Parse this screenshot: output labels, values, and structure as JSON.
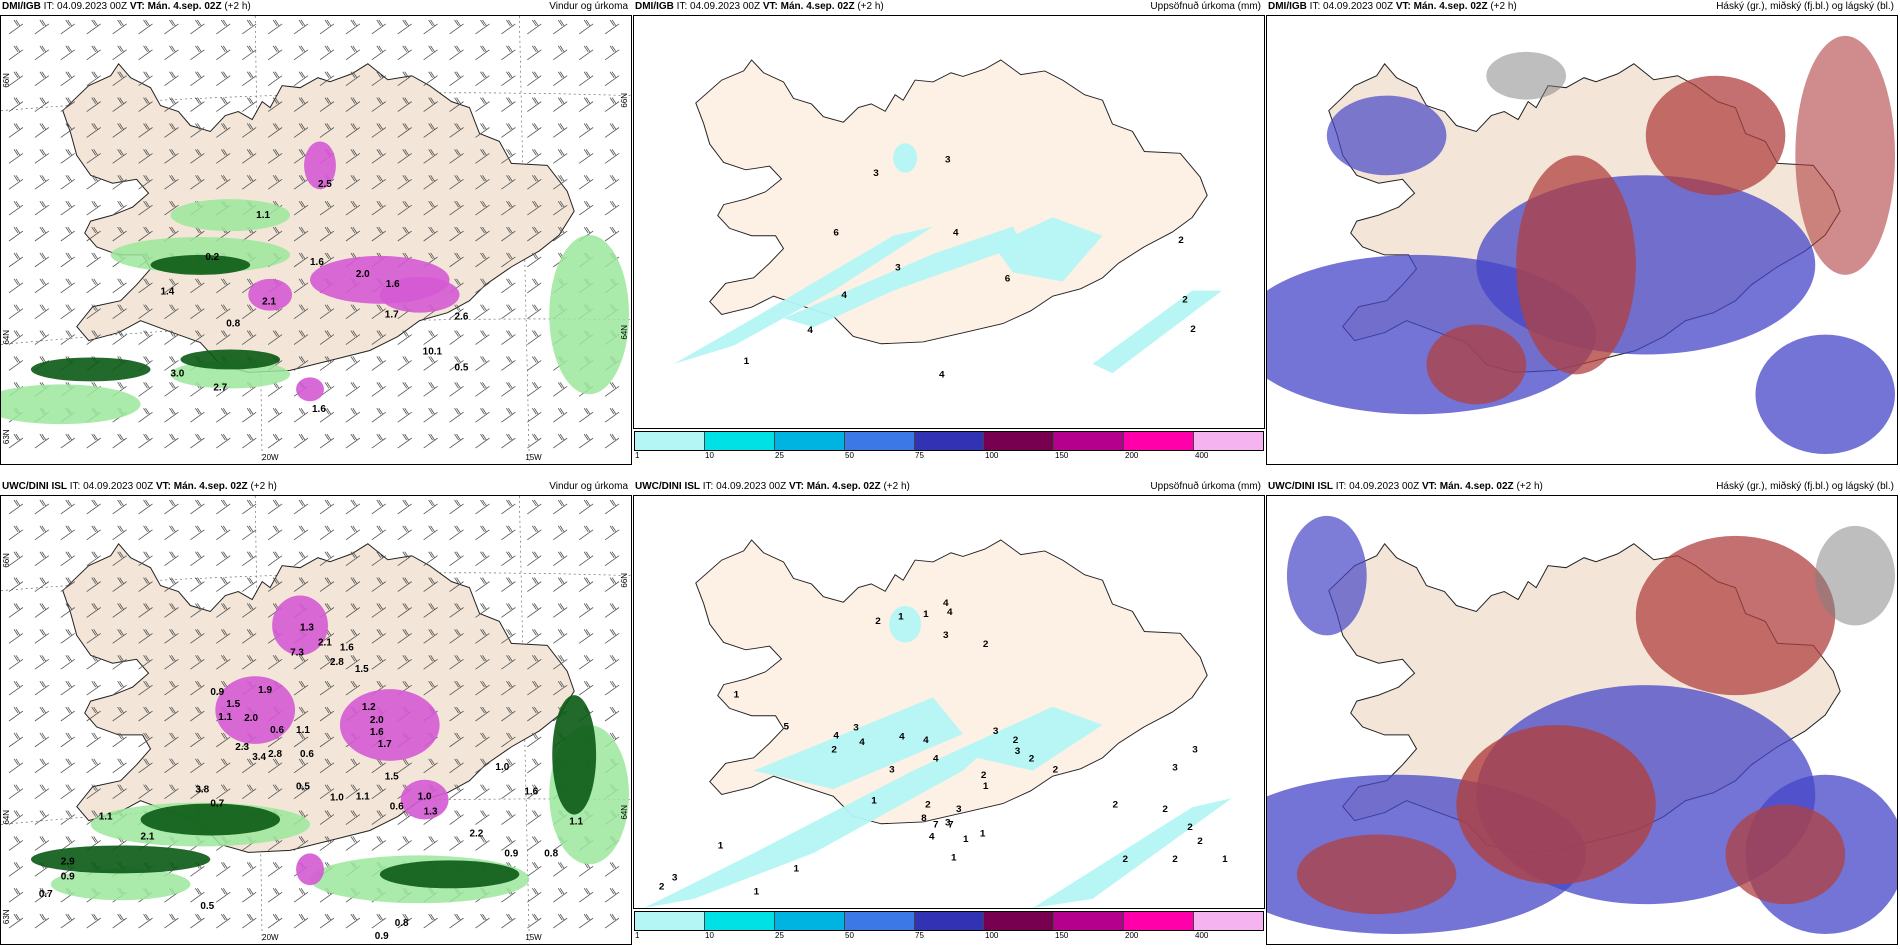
{
  "rows": [
    {
      "panels": [
        {
          "model": "DMI/IGB",
          "it_label": "IT:",
          "it": "04.09.2023 00Z",
          "vt_label": "VT:",
          "vt": "Mán. 4.sep. 02Z",
          "lead": "(+2 h)",
          "title": "Vindur og úrkoma"
        },
        {
          "model": "DMI/IGB",
          "it_label": "IT:",
          "it": "04.09.2023 00Z",
          "vt_label": "VT:",
          "vt": "Mán. 4.sep. 02Z",
          "lead": "(+2 h)",
          "title": "Uppsöfnuð úrkoma (mm)"
        },
        {
          "model": "DMI/IGB",
          "it_label": "IT:",
          "it": "04.09.2023 00Z",
          "vt_label": "VT:",
          "vt": "Mán. 4.sep. 02Z",
          "lead": "(+2 h)",
          "title": "Háský (gr.), miðský (fj.bl.) og lágský (bl.)"
        }
      ]
    },
    {
      "panels": [
        {
          "model": "UWC/DINI ISL",
          "it_label": "IT:",
          "it": "04.09.2023 00Z",
          "vt_label": "VT:",
          "vt": "Mán. 4.sep. 02Z",
          "lead": "(+2 h)",
          "title": "Vindur og úrkoma"
        },
        {
          "model": "UWC/DINI ISL",
          "it_label": "IT:",
          "it": "04.09.2023 00Z",
          "vt_label": "VT:",
          "vt": "Mán. 4.sep. 02Z",
          "lead": "(+2 h)",
          "title": "Uppsöfnuð úrkoma (mm)"
        },
        {
          "model": "UWC/DINI ISL",
          "it_label": "IT:",
          "it": "04.09.2023 00Z",
          "vt_label": "VT:",
          "vt": "Mán. 4.sep. 02Z",
          "lead": "(+2 h)",
          "title": "Háský (gr.), miðský (fj.bl.) og lágský (bl.)"
        }
      ]
    }
  ],
  "axes": {
    "lon_20w": "20W",
    "lon_15w": "15W",
    "lat_66n": "66N",
    "lat_64n": "64N",
    "lat_63n": "63N"
  },
  "legend": {
    "colors": [
      "#b4f5f5",
      "#00e1e6",
      "#00b4e1",
      "#3c78e6",
      "#3232b4",
      "#780050",
      "#b4008c",
      "#ff00aa",
      "#f5b4f0"
    ],
    "ticks": [
      "1",
      "10",
      "25",
      "50",
      "75",
      "100",
      "150",
      "200",
      "400"
    ]
  },
  "colors": {
    "land": "#f3e6d8",
    "accum_land": "#fdf0e4",
    "precip_light": "#9be69b",
    "precip_dark": "#0a5a14",
    "precip_magenta": "#d45ad4",
    "accum_cyan": "#b4f5f5",
    "high_cloud": "#7d7d7d",
    "mid_cloud": "#b04040",
    "low_cloud": "#4646c8"
  },
  "labels": {
    "r0p0": [
      "0.2",
      "2.5",
      "1.1",
      "1.6",
      "2.0",
      "1.6",
      "1.7",
      "2.6",
      "0.8",
      "2.1",
      "10.1",
      "0.5",
      "3.0",
      "2.7",
      "1.6",
      "1.4"
    ],
    "r0p1": [
      "3",
      "3",
      "6",
      "4",
      "3",
      "6",
      "4",
      "1",
      "2",
      "2",
      "2",
      "4",
      "4"
    ],
    "r1p0": [
      "1.3",
      "2.1",
      "1.6",
      "2.8",
      "1.5",
      "7.3",
      "0.9",
      "1.9",
      "1.5",
      "2.0",
      "0.6",
      "1.1",
      "1.2",
      "2.0",
      "1.6",
      "1.7",
      "2.3",
      "3.4",
      "1.1",
      "0.6",
      "2.8",
      "0.5",
      "1.0",
      "1.5",
      "1.1",
      "0.6",
      "1.3",
      "3.8",
      "0.7",
      "1.0",
      "2.2",
      "0.9",
      "0.8",
      "1.6",
      "2.9",
      "0.7",
      "0.5",
      "0.8",
      "0.9",
      "1.1",
      "1.1",
      "0.9",
      "2.1",
      "1.0"
    ],
    "r1p1": [
      "2",
      "1",
      "1",
      "4",
      "4",
      "3",
      "2",
      "1",
      "5",
      "4",
      "2",
      "3",
      "4",
      "4",
      "3",
      "4",
      "4",
      "2",
      "3",
      "2",
      "3",
      "2",
      "2",
      "1",
      "2",
      "3",
      "3",
      "8",
      "4",
      "7",
      "7",
      "1",
      "1",
      "1",
      "1",
      "3",
      "3",
      "2",
      "2",
      "2",
      "2",
      "2",
      "2",
      "1",
      "1",
      "1",
      "1",
      "2",
      "3"
    ]
  }
}
